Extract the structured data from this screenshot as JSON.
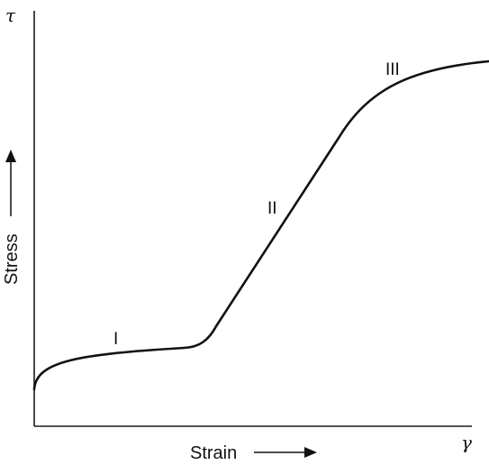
{
  "axes": {
    "x_label": "Strain",
    "y_label": "Stress",
    "x_symbol": "γ",
    "y_symbol": "τ"
  },
  "stages": [
    {
      "label": "I"
    },
    {
      "label": "II"
    },
    {
      "label": "III"
    }
  ]
}
